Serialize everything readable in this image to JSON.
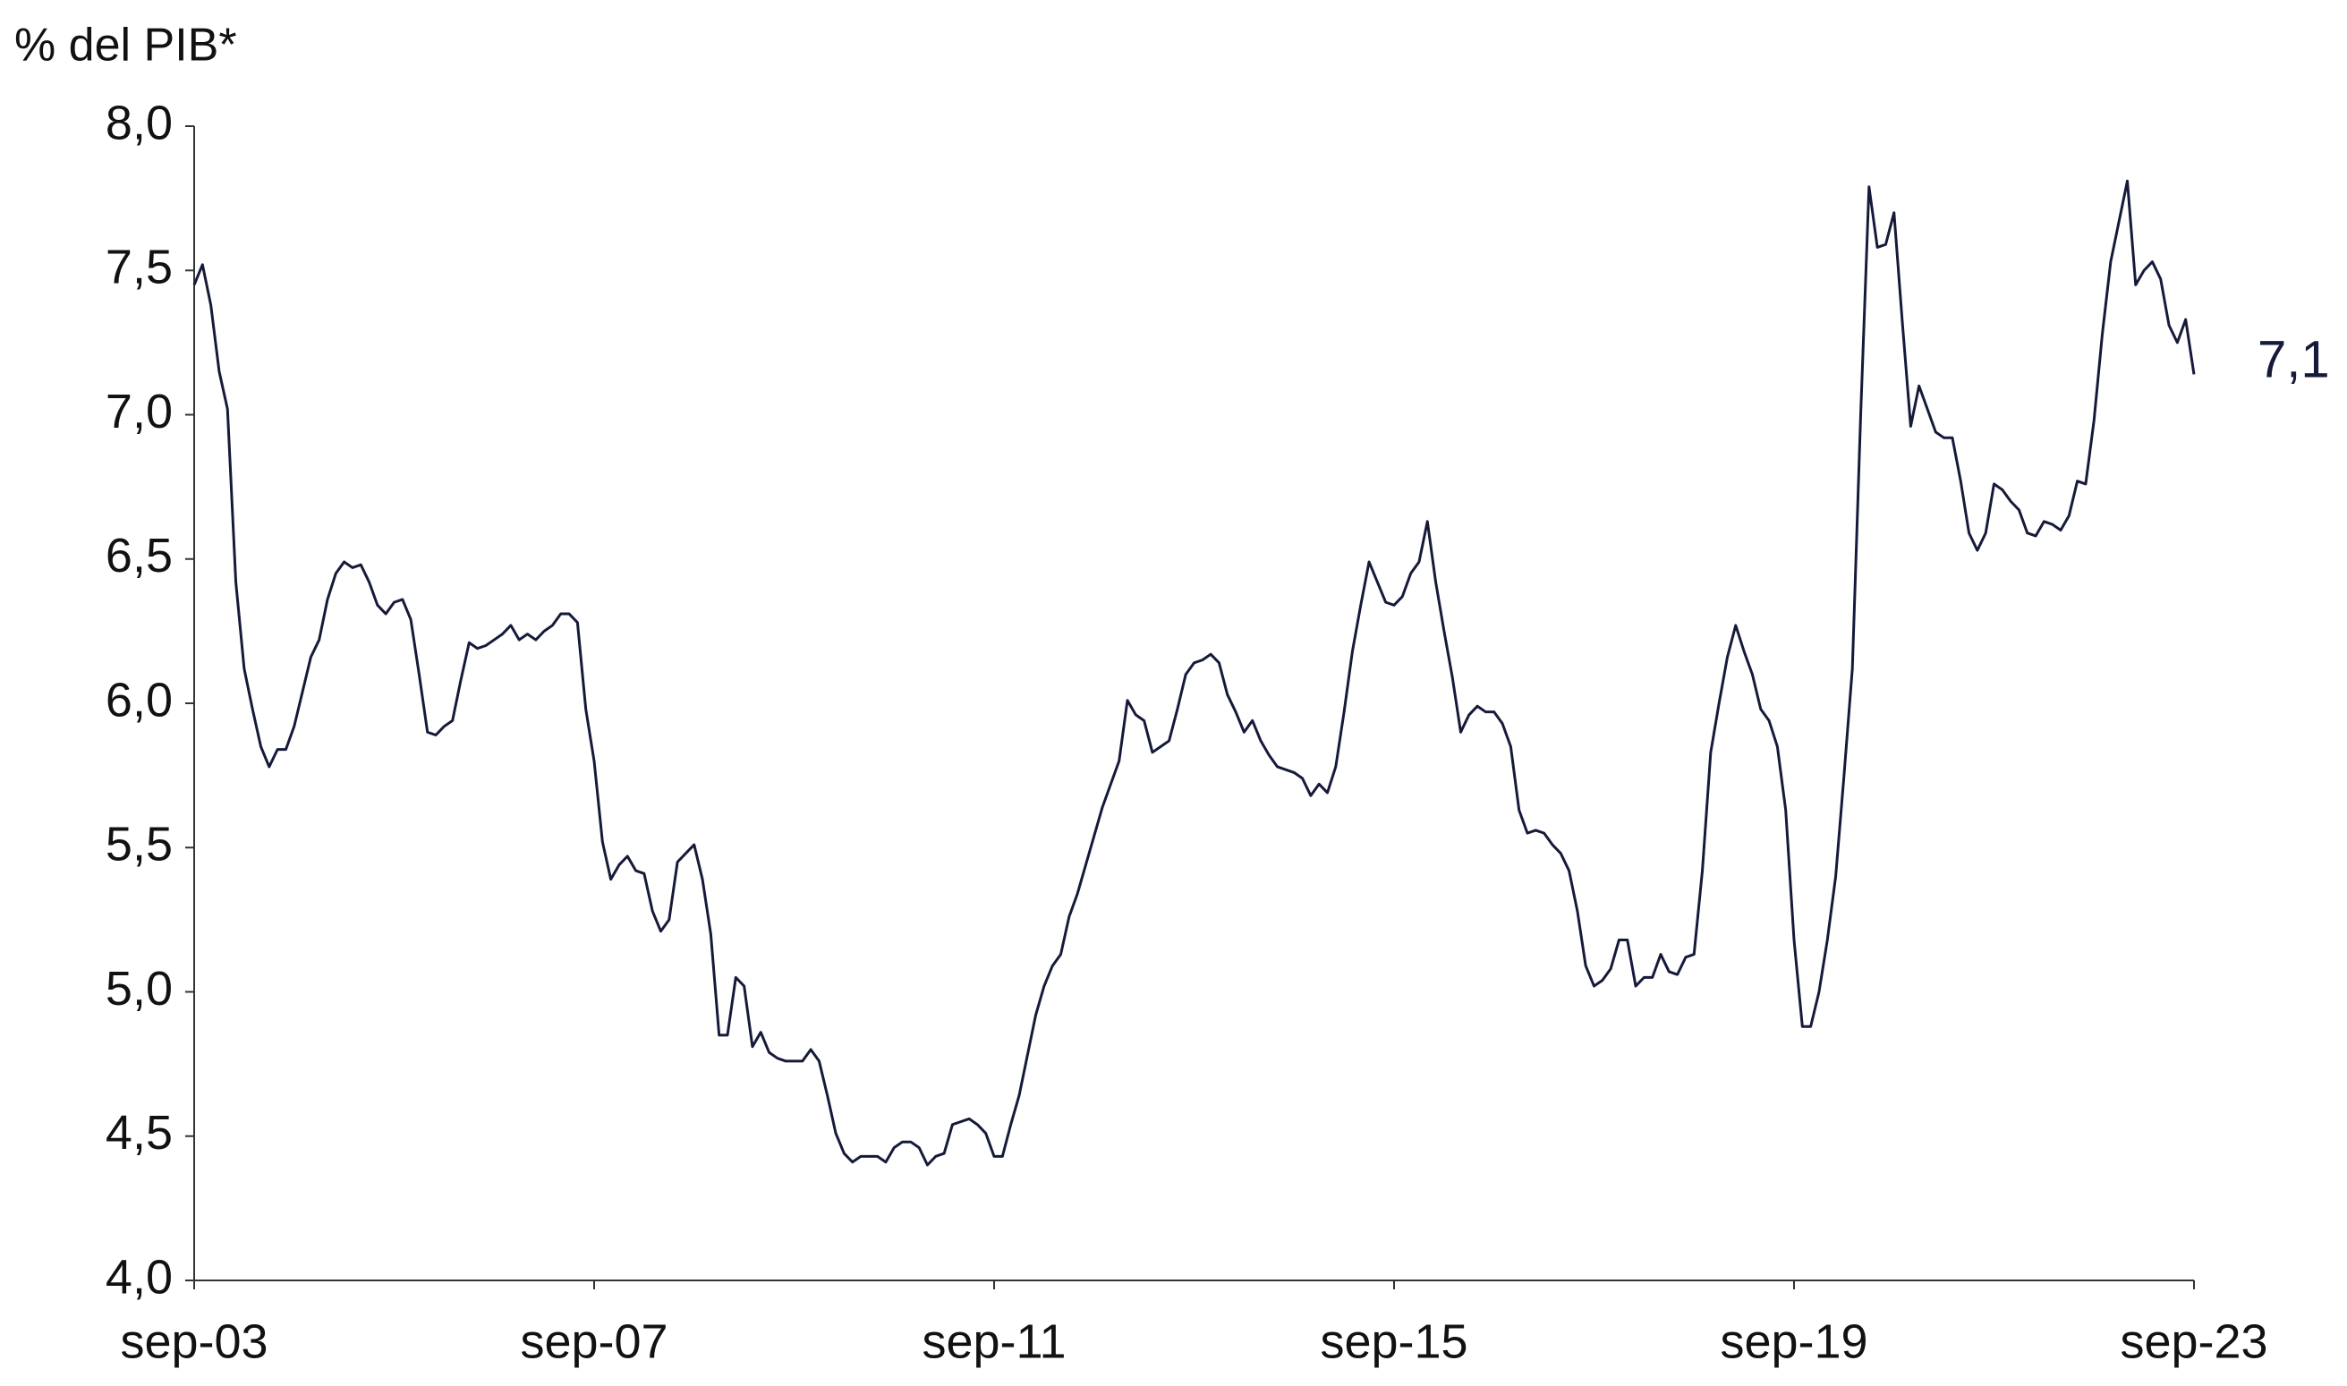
{
  "chart_data": {
    "type": "line",
    "y_axis_label": "% del PIB*",
    "end_label": "7,1",
    "color": "#161a3a",
    "ylim": [
      4.0,
      8.0
    ],
    "yticks": [
      {
        "value": 4.0,
        "label": "4,0"
      },
      {
        "value": 4.5,
        "label": "4,5"
      },
      {
        "value": 5.0,
        "label": "5,0"
      },
      {
        "value": 5.5,
        "label": "5,5"
      },
      {
        "value": 6.0,
        "label": "6,0"
      },
      {
        "value": 6.5,
        "label": "6,5"
      },
      {
        "value": 7.0,
        "label": "7,0"
      },
      {
        "value": 7.5,
        "label": "7,5"
      },
      {
        "value": 8.0,
        "label": "8,0"
      }
    ],
    "grid": false,
    "categories": [
      "sep-03",
      null,
      null,
      null,
      null,
      null,
      null,
      null,
      null,
      null,
      null,
      null,
      null,
      null,
      null,
      null,
      null,
      null,
      null,
      null,
      null,
      null,
      null,
      null,
      null,
      null,
      null,
      null,
      null,
      null,
      null,
      null,
      null,
      null,
      null,
      null,
      null,
      null,
      null,
      null,
      null,
      null,
      null,
      null,
      null,
      null,
      null,
      null,
      "sep-07",
      null,
      null,
      null,
      null,
      null,
      null,
      null,
      null,
      null,
      null,
      null,
      null,
      null,
      null,
      null,
      null,
      null,
      null,
      null,
      null,
      null,
      null,
      null,
      null,
      null,
      null,
      null,
      null,
      null,
      null,
      null,
      null,
      null,
      null,
      null,
      null,
      null,
      null,
      null,
      null,
      null,
      null,
      null,
      null,
      null,
      null,
      null,
      "sep-11",
      null,
      null,
      null,
      null,
      null,
      null,
      null,
      null,
      null,
      null,
      null,
      null,
      null,
      null,
      null,
      null,
      null,
      null,
      null,
      null,
      null,
      null,
      null,
      null,
      null,
      null,
      null,
      null,
      null,
      null,
      null,
      null,
      null,
      null,
      null,
      null,
      null,
      null,
      null,
      null,
      null,
      null,
      null,
      null,
      null,
      null,
      null,
      "sep-15",
      null,
      null,
      null,
      null,
      null,
      null,
      null,
      null,
      null,
      null,
      null,
      null,
      null,
      null,
      null,
      null,
      null,
      null,
      null,
      null,
      null,
      null,
      null,
      null,
      null,
      null,
      null,
      null,
      null,
      null,
      null,
      null,
      null,
      null,
      null,
      null,
      null,
      null,
      null,
      null,
      null,
      null,
      null,
      null,
      null,
      null,
      null,
      "sep-19",
      null,
      null,
      null,
      null,
      null,
      null,
      null,
      null,
      null,
      null,
      null,
      null,
      null,
      null,
      null,
      null,
      null,
      null,
      null,
      null,
      null,
      null,
      null,
      null,
      null,
      null,
      null,
      null,
      null,
      null,
      null,
      null,
      null,
      null,
      null,
      null,
      null,
      null,
      null,
      null,
      null,
      null,
      null,
      null,
      null,
      null,
      null,
      "sep-23"
    ],
    "values": [
      7.45,
      7.52,
      7.38,
      7.15,
      7.02,
      6.42,
      6.12,
      5.98,
      5.85,
      5.78,
      5.84,
      5.84,
      5.92,
      6.04,
      6.16,
      6.22,
      6.36,
      6.45,
      6.49,
      6.47,
      6.48,
      6.42,
      6.34,
      6.31,
      6.35,
      6.36,
      6.29,
      6.1,
      5.9,
      5.89,
      5.92,
      5.94,
      6.08,
      6.21,
      6.19,
      6.2,
      6.22,
      6.24,
      6.27,
      6.22,
      6.24,
      6.22,
      6.25,
      6.27,
      6.31,
      6.31,
      6.28,
      5.98,
      5.8,
      5.52,
      5.39,
      5.44,
      5.47,
      5.42,
      5.41,
      5.28,
      5.21,
      5.25,
      5.45,
      5.48,
      5.51,
      5.39,
      5.2,
      4.85,
      4.85,
      5.05,
      5.02,
      4.81,
      4.86,
      4.79,
      4.77,
      4.76,
      4.76,
      4.76,
      4.8,
      4.76,
      4.64,
      4.51,
      4.44,
      4.41,
      4.43,
      4.43,
      4.43,
      4.41,
      4.46,
      4.48,
      4.48,
      4.46,
      4.4,
      4.43,
      4.44,
      4.54,
      4.55,
      4.56,
      4.54,
      4.51,
      4.43,
      4.43,
      4.54,
      4.64,
      4.78,
      4.92,
      5.02,
      5.09,
      5.13,
      5.26,
      5.34,
      5.44,
      5.54,
      5.64,
      5.72,
      5.8,
      6.01,
      5.96,
      5.94,
      5.83,
      5.85,
      5.87,
      5.98,
      6.1,
      6.14,
      6.15,
      6.17,
      6.14,
      6.03,
      5.97,
      5.9,
      5.94,
      5.87,
      5.82,
      5.78,
      5.77,
      5.76,
      5.74,
      5.68,
      5.72,
      5.69,
      5.78,
      5.97,
      6.18,
      6.34,
      6.49,
      6.42,
      6.35,
      6.34,
      6.37,
      6.45,
      6.49,
      6.63,
      6.42,
      6.25,
      6.09,
      5.9,
      5.96,
      5.99,
      5.97,
      5.97,
      5.93,
      5.85,
      5.63,
      5.55,
      5.56,
      5.55,
      5.51,
      5.48,
      5.42,
      5.28,
      5.09,
      5.02,
      5.04,
      5.08,
      5.18,
      5.18,
      5.02,
      5.05,
      5.05,
      5.13,
      5.07,
      5.06,
      5.12,
      5.13,
      5.42,
      5.83,
      6.0,
      6.16,
      6.27,
      6.18,
      6.1,
      5.98,
      5.94,
      5.85,
      5.63,
      5.18,
      4.88,
      4.88,
      5.0,
      5.18,
      5.4,
      5.75,
      6.12,
      7.0,
      7.79,
      7.58,
      7.59,
      7.7,
      7.32,
      6.96,
      7.1,
      7.02,
      6.94,
      6.92,
      6.92,
      6.77,
      6.59,
      6.53,
      6.59,
      6.76,
      6.74,
      6.7,
      6.67,
      6.59,
      6.58,
      6.63,
      6.62,
      6.6,
      6.65,
      6.77,
      6.76,
      6.98,
      7.28,
      7.53,
      7.67,
      7.81,
      7.45,
      7.5,
      7.53,
      7.47,
      7.31,
      7.25,
      7.33,
      7.14
    ]
  }
}
